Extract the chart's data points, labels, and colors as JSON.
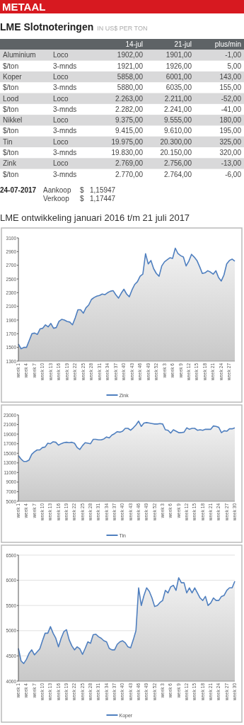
{
  "chart_data": [
    {
      "type": "other",
      "title": "METAAL",
      "subtitle": "LME Slotnoteringen",
      "annotations": [
        "IN US$ PER TON",
        "14-jul",
        "21-jul",
        "plus/min",
        "Aluminium",
        "Loco",
        "1902,00",
        "1901,00",
        "-1,00",
        "$/ton",
        "3-mnds",
        "1921,00",
        "1926,00",
        "5,00",
        "Koper",
        "Loco",
        "5858,00",
        "6001,00",
        "143,00",
        "$/ton",
        "3-mnds",
        "5880,00",
        "6035,00",
        "155,00",
        "Lood",
        "Loco",
        "2.263,00",
        "2.211,00",
        "-52,00",
        "$/ton",
        "3-mnds",
        "2.282,00",
        "2.241,00",
        "-41,00",
        "Nikkel",
        "Loco",
        "9.375,00",
        "9.555,00",
        "180,00",
        "$/ton",
        "3-mnds",
        "9.415,00",
        "9.610,00",
        "195,00",
        "Tin",
        "Loco",
        "19.975,00",
        "20.300,00",
        "325,00",
        "$/ton",
        "3-mnds",
        "19.830,00",
        "20.150,00",
        "320,00",
        "Zink",
        "Loco",
        "2.769,00",
        "2.756,00",
        "-13,00",
        "$/ton",
        "3-mnds",
        "2.770,00",
        "2.764,00",
        "-6,00",
        "24-07-2017",
        "Aankoop",
        "$",
        "1,15947",
        "Verkoop",
        "$",
        "1,17447"
      ]
    },
    {
      "type": "area",
      "title": "LME ontwikkeling januari 2016 t/m 21 juli 2017",
      "legend": "bottom",
      "ylim": [
        1300,
        3100
      ],
      "yticks": [
        1300,
        1500,
        1700,
        1900,
        2100,
        2300,
        2500,
        2700,
        2900,
        3100
      ],
      "categories": [
        "week 1",
        null,
        null,
        "week 4",
        null,
        null,
        "week 7",
        null,
        null,
        "week 10",
        null,
        null,
        "week 13",
        null,
        null,
        "week 16",
        null,
        null,
        "week 19",
        null,
        null,
        "week 22",
        null,
        null,
        "week 25",
        null,
        null,
        "week 28",
        null,
        null,
        "week 31",
        null,
        null,
        "week 34",
        null,
        null,
        "week 37",
        null,
        null,
        "week 40",
        null,
        null,
        "week 43",
        null,
        null,
        "week 46",
        null,
        null,
        "week 49",
        null,
        null,
        "week 52",
        null,
        null,
        "week 3",
        null,
        null,
        "week 6",
        null,
        null,
        "week 9",
        null,
        null,
        "week 12",
        null,
        null,
        "week 15",
        null,
        null,
        "week 18",
        null,
        null,
        "week 21",
        null,
        null,
        "week 24",
        null,
        null,
        "week 27",
        null,
        null
      ],
      "series": [
        {
          "name": "Zink",
          "color": "#4f7fbf",
          "values": [
            1550,
            1480,
            1500,
            1500,
            1600,
            1700,
            1710,
            1690,
            1770,
            1780,
            1830,
            1800,
            1850,
            1780,
            1790,
            1880,
            1910,
            1900,
            1880,
            1870,
            1830,
            1930,
            2050,
            2050,
            2000,
            2080,
            2120,
            2200,
            2230,
            2250,
            2260,
            2280,
            2270,
            2300,
            2320,
            2330,
            2270,
            2220,
            2290,
            2350,
            2280,
            2240,
            2340,
            2420,
            2460,
            2540,
            2570,
            2870,
            2720,
            2770,
            2650,
            2580,
            2540,
            2690,
            2750,
            2780,
            2810,
            2800,
            2950,
            2870,
            2840,
            2820,
            2690,
            2760,
            2860,
            2820,
            2770,
            2680,
            2580,
            2590,
            2620,
            2600,
            2570,
            2620,
            2520,
            2470,
            2560,
            2720,
            2770,
            2790,
            2760
          ]
        }
      ]
    },
    {
      "type": "area",
      "legend": "bottom",
      "ylim": [
        5000,
        23000
      ],
      "yticks": [
        5000,
        7000,
        9000,
        11000,
        13000,
        15000,
        17000,
        19000,
        21000,
        23000
      ],
      "categories": [
        "week 1",
        null,
        null,
        "week 4",
        null,
        null,
        "week 7",
        null,
        null,
        "week 10",
        null,
        null,
        "week 13",
        null,
        null,
        "week 16",
        null,
        null,
        "week 19",
        null,
        null,
        "week 22",
        null,
        null,
        "week 25",
        null,
        null,
        "week 28",
        null,
        null,
        "week 31",
        null,
        null,
        "week 34",
        null,
        null,
        "week 37",
        null,
        null,
        "week 40",
        null,
        null,
        "week 43",
        null,
        null,
        "week 46",
        null,
        null,
        "week 49",
        null,
        null,
        "week 52",
        null,
        null,
        "week 3",
        null,
        null,
        "week 6",
        null,
        null,
        "week 9",
        null,
        null,
        "week 12",
        null,
        null,
        "week 15",
        null,
        null,
        "week 18",
        null,
        null,
        "week 21",
        null,
        null,
        "week 24",
        null,
        null,
        "week 27",
        null,
        null,
        "week 30"
      ],
      "series": [
        {
          "name": "Tin",
          "color": "#4f7fbf",
          "values": [
            14500,
            13800,
            13300,
            13300,
            13600,
            14800,
            15300,
            15700,
            15700,
            16200,
            16300,
            17100,
            17000,
            17400,
            17300,
            16700,
            17000,
            17200,
            17300,
            17200,
            17300,
            17100,
            16200,
            15800,
            16600,
            17200,
            17100,
            17000,
            17900,
            17900,
            17800,
            17800,
            18000,
            18400,
            18200,
            18800,
            19100,
            19500,
            19400,
            19600,
            20200,
            20200,
            19800,
            20300,
            20900,
            21700,
            20600,
            21300,
            21400,
            21300,
            21200,
            21100,
            21100,
            21200,
            21100,
            19900,
            19800,
            19200,
            19900,
            19600,
            19300,
            19300,
            19400,
            20300,
            20000,
            20200,
            20200,
            19800,
            19900,
            19800,
            20000,
            20000,
            20000,
            20700,
            20600,
            20400,
            19300,
            19700,
            19600,
            20100,
            20100,
            20300
          ]
        }
      ]
    },
    {
      "type": "area",
      "legend": "bottom",
      "grid": "y",
      "ylim": [
        4000,
        6500
      ],
      "yticks": [
        4000,
        4500,
        5000,
        5500,
        6000,
        6500
      ],
      "categories": [
        "week 1",
        null,
        null,
        "week 4",
        null,
        null,
        "week 7",
        null,
        null,
        "week 10",
        null,
        null,
        "week 13",
        null,
        null,
        "week 16",
        null,
        null,
        "week 19",
        null,
        null,
        "week 22",
        null,
        null,
        "week 25",
        null,
        null,
        "week 28",
        null,
        null,
        "week 31",
        null,
        null,
        "week 34",
        null,
        null,
        "week 37",
        null,
        null,
        "week 40",
        null,
        null,
        "week 43",
        null,
        null,
        "week 46",
        null,
        null,
        "week 49",
        null,
        null,
        "week 52",
        null,
        null,
        "week 3",
        null,
        null,
        "week 6",
        null,
        null,
        "week 9",
        null,
        null,
        "week 12",
        null,
        null,
        "week 15",
        null,
        null,
        "week 18",
        null,
        null,
        "week 21",
        null,
        null,
        "week 24",
        null,
        null,
        "week 27",
        null,
        null,
        "week 30"
      ],
      "series": [
        {
          "name": "Koper",
          "color": "#4f7fbf",
          "values": [
            4650,
            4400,
            4350,
            4430,
            4550,
            4620,
            4520,
            4580,
            4640,
            4800,
            4950,
            4950,
            5080,
            4950,
            4850,
            4680,
            4850,
            4980,
            5020,
            4820,
            4700,
            4620,
            4680,
            4640,
            4530,
            4650,
            4780,
            4750,
            4920,
            4930,
            4880,
            4850,
            4800,
            4780,
            4650,
            4620,
            4620,
            4730,
            4780,
            4800,
            4760,
            4680,
            4660,
            4820,
            5000,
            5850,
            5500,
            5700,
            5850,
            5780,
            5650,
            5480,
            5500,
            5560,
            5600,
            5800,
            5750,
            5870,
            5900,
            5800,
            6050,
            5950,
            5950,
            5750,
            5850,
            5750,
            5850,
            5750,
            5650,
            5600,
            5680,
            5500,
            5550,
            5650,
            5600,
            5600,
            5680,
            5700,
            5800,
            5850,
            5850,
            5980
          ]
        }
      ]
    }
  ]
}
